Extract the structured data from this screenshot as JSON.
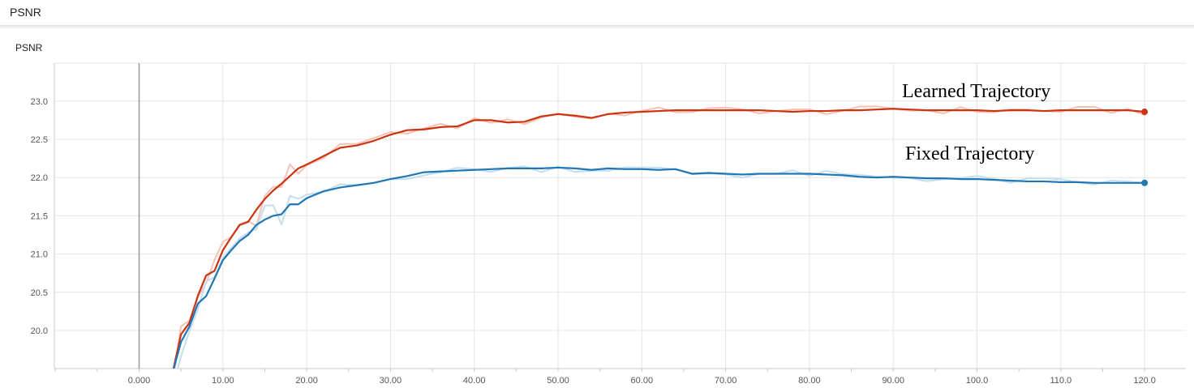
{
  "header": {
    "title": "PSNR"
  },
  "card": {
    "title": "PSNR"
  },
  "chart_data": {
    "type": "line",
    "title": "PSNR",
    "xlabel": "",
    "ylabel": "",
    "xlim": [
      -10,
      122
    ],
    "ylim": [
      19.45,
      24.1
    ],
    "x_ticks": [
      "0.000",
      "10.00",
      "20.00",
      "30.00",
      "40.00",
      "50.00",
      "60.00",
      "70.00",
      "80.00",
      "90.00",
      "100.0",
      "110.0",
      "120.0"
    ],
    "y_ticks": [
      "20.0",
      "20.5",
      "21.0",
      "21.5",
      "22.0",
      "22.5",
      "23.0"
    ],
    "grid": true,
    "annotations": [
      "Learned Trajectory",
      "Fixed Trajectory"
    ],
    "series": [
      {
        "name": "Learned Trajectory",
        "color": "#cc3311",
        "raw_color": "#f5c2b5",
        "x": [
          4,
          5,
          6,
          7,
          8,
          9,
          10,
          11,
          12,
          13,
          14,
          15,
          16,
          17,
          18,
          19,
          20,
          22,
          24,
          26,
          28,
          30,
          32,
          34,
          36,
          38,
          40,
          42,
          44,
          46,
          48,
          50,
          52,
          54,
          56,
          58,
          60,
          62,
          64,
          66,
          68,
          70,
          72,
          74,
          76,
          78,
          80,
          82,
          84,
          86,
          88,
          90,
          92,
          94,
          96,
          98,
          100,
          102,
          104,
          106,
          108,
          110,
          112,
          114,
          116,
          118,
          120
        ],
        "y": [
          19.45,
          19.95,
          20.1,
          20.45,
          20.72,
          20.78,
          21.05,
          21.22,
          21.38,
          21.42,
          21.58,
          21.72,
          21.83,
          21.92,
          22.02,
          22.12,
          22.17,
          22.28,
          22.39,
          22.42,
          22.48,
          22.56,
          22.62,
          22.63,
          22.66,
          22.67,
          22.75,
          22.75,
          22.72,
          22.73,
          22.8,
          22.83,
          22.81,
          22.78,
          22.83,
          22.85,
          22.86,
          22.87,
          22.88,
          22.88,
          22.88,
          22.88,
          22.88,
          22.88,
          22.87,
          22.86,
          22.87,
          22.87,
          22.88,
          22.88,
          22.89,
          22.9,
          22.89,
          22.88,
          22.88,
          22.88,
          22.88,
          22.87,
          22.88,
          22.88,
          22.87,
          22.88,
          22.88,
          22.88,
          22.88,
          22.88,
          22.86
        ]
      },
      {
        "name": "Fixed Trajectory",
        "color": "#1f77b4",
        "raw_color": "#c4def0",
        "x": [
          4,
          5,
          6,
          7,
          8,
          9,
          10,
          11,
          12,
          13,
          14,
          15,
          16,
          17,
          18,
          19,
          20,
          22,
          24,
          26,
          28,
          30,
          32,
          34,
          36,
          38,
          40,
          42,
          44,
          46,
          48,
          50,
          52,
          54,
          56,
          58,
          60,
          62,
          64,
          66,
          68,
          70,
          72,
          74,
          76,
          78,
          80,
          82,
          84,
          86,
          88,
          90,
          92,
          94,
          96,
          98,
          100,
          102,
          104,
          106,
          108,
          110,
          112,
          114,
          116,
          118,
          120
        ],
        "y": [
          19.45,
          19.85,
          20.05,
          20.35,
          20.45,
          20.68,
          20.92,
          21.05,
          21.17,
          21.25,
          21.38,
          21.45,
          21.5,
          21.52,
          21.65,
          21.65,
          21.73,
          21.82,
          21.87,
          21.9,
          21.93,
          21.98,
          22.02,
          22.07,
          22.08,
          22.09,
          22.1,
          22.11,
          22.12,
          22.12,
          22.12,
          22.13,
          22.12,
          22.1,
          22.12,
          22.11,
          22.11,
          22.1,
          22.11,
          22.05,
          22.06,
          22.05,
          22.04,
          22.05,
          22.05,
          22.05,
          22.05,
          22.04,
          22.03,
          22.01,
          22.0,
          22.01,
          22.0,
          21.99,
          21.99,
          21.98,
          21.98,
          21.97,
          21.96,
          21.95,
          21.95,
          21.94,
          21.94,
          21.93,
          21.93,
          21.93,
          21.93
        ]
      }
    ]
  }
}
